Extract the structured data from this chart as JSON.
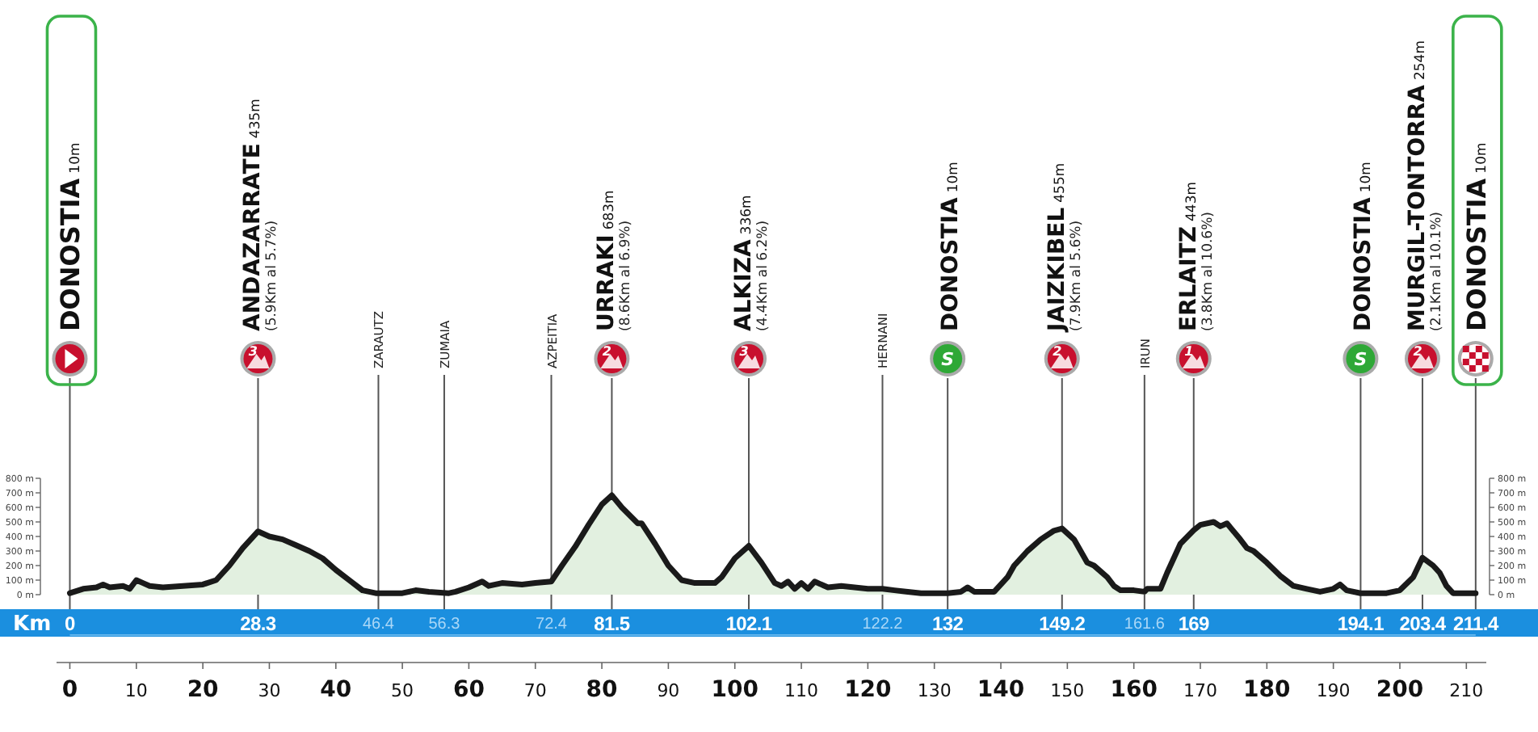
{
  "chart_data": {
    "type": "area",
    "x2label": "Km",
    "color": "#e2f0e0",
    "x": [
      0,
      2,
      4,
      5,
      6,
      8,
      9,
      10,
      11,
      12,
      14,
      17,
      20,
      22,
      24,
      26,
      28.3,
      30,
      32,
      34,
      36,
      38,
      40,
      42,
      44,
      46,
      50,
      52,
      54,
      57,
      58,
      60,
      62,
      63,
      65,
      68,
      70,
      72.4,
      74,
      76,
      78,
      80,
      81.5,
      83,
      85.4,
      86,
      88,
      90,
      92,
      94,
      97,
      98,
      100,
      102.1,
      104,
      106,
      107,
      108,
      109,
      110,
      111,
      112,
      114,
      116,
      118,
      120,
      122.2,
      124,
      126,
      128,
      132,
      134,
      135,
      136,
      139,
      141,
      142,
      144,
      146,
      148,
      149.2,
      151,
      152,
      153,
      154,
      156,
      157,
      158,
      160,
      161.6,
      162,
      164,
      165,
      167,
      169,
      170,
      172,
      173,
      174,
      176,
      177,
      178,
      180,
      182,
      184,
      186,
      188,
      190,
      191,
      192,
      194.1,
      198,
      200,
      202,
      203.4,
      205,
      206,
      207,
      208,
      211.4
    ],
    "values": [
      10,
      40,
      50,
      70,
      50,
      60,
      40,
      100,
      80,
      60,
      50,
      60,
      70,
      100,
      200,
      320,
      435,
      400,
      380,
      340,
      300,
      250,
      170,
      100,
      30,
      10,
      10,
      30,
      20,
      10,
      20,
      50,
      90,
      60,
      80,
      70,
      80,
      90,
      200,
      330,
      480,
      620,
      683,
      600,
      490,
      490,
      350,
      200,
      100,
      80,
      80,
      120,
      250,
      336,
      220,
      80,
      60,
      90,
      40,
      80,
      40,
      90,
      50,
      60,
      50,
      40,
      40,
      30,
      20,
      10,
      10,
      20,
      50,
      20,
      20,
      120,
      200,
      300,
      380,
      440,
      455,
      380,
      300,
      220,
      200,
      120,
      60,
      30,
      30,
      20,
      40,
      40,
      150,
      350,
      443,
      480,
      500,
      470,
      490,
      380,
      320,
      300,
      220,
      130,
      60,
      40,
      20,
      40,
      70,
      30,
      10,
      10,
      30,
      120,
      254,
      200,
      150,
      60,
      10,
      10
    ],
    "xlim": [
      -2,
      213
    ],
    "xticks": [
      0,
      10,
      20,
      30,
      40,
      50,
      60,
      70,
      80,
      90,
      100,
      110,
      120,
      130,
      140,
      150,
      160,
      170,
      180,
      190,
      200,
      210
    ],
    "x2lim": [
      0,
      211.4
    ],
    "x2ticks": [
      0,
      28.3,
      46.4,
      56.3,
      72.4,
      81.5,
      102.1,
      122.2,
      132,
      149.2,
      161.6,
      169,
      194.1,
      203.4,
      211.4
    ],
    "ylim": [
      0,
      800
    ],
    "yticks": [
      {
        "value": 0,
        "label": "0 m"
      },
      {
        "value": 100,
        "label": "100 m"
      },
      {
        "value": 200,
        "label": "200 m"
      },
      {
        "value": 300,
        "label": "300 m"
      },
      {
        "value": 400,
        "label": "400 m"
      },
      {
        "value": 500,
        "label": "500 m"
      },
      {
        "value": 600,
        "label": "600 m"
      },
      {
        "value": 700,
        "label": "700 m"
      },
      {
        "value": 800,
        "label": "800 m"
      }
    ],
    "y2lim": [
      0,
      800
    ],
    "y2ticks": [
      {
        "value": 0,
        "label": "0 m"
      },
      {
        "value": 100,
        "label": "100 m"
      },
      {
        "value": 200,
        "label": "200 m"
      },
      {
        "value": 300,
        "label": "300 m"
      },
      {
        "value": 400,
        "label": "400 m"
      },
      {
        "value": 500,
        "label": "500 m"
      },
      {
        "value": 600,
        "label": "600 m"
      },
      {
        "value": 700,
        "label": "700 m"
      },
      {
        "value": 800,
        "label": "800 m"
      }
    ],
    "ref_lines": [
      {
        "axis": "x",
        "value": 0,
        "label": "DONOSTIA 10m"
      },
      {
        "axis": "x",
        "value": 28.3,
        "label": "ANDAZARRATE 435m (5.9Km al 5.7%)"
      },
      {
        "axis": "x",
        "value": 46.4,
        "label": "ZARAUTZ"
      },
      {
        "axis": "x",
        "value": 56.3,
        "label": "ZUMAIA"
      },
      {
        "axis": "x",
        "value": 72.4,
        "label": "AZPEITIA"
      },
      {
        "axis": "x",
        "value": 81.5,
        "label": "URRAKI 683m (8.6Km al 6.9%)"
      },
      {
        "axis": "x",
        "value": 102.1,
        "label": "ALKIZA 336m (4.4Km al 6.2%)"
      },
      {
        "axis": "x",
        "value": 122.2,
        "label": "HERNANI"
      },
      {
        "axis": "x",
        "value": 132,
        "label": "DONOSTIA 10m"
      },
      {
        "axis": "x",
        "value": 149.2,
        "label": "JAIZKIBEL 455m (7.9Km al 5.6%)"
      },
      {
        "axis": "x",
        "value": 161.6,
        "label": "IRUN"
      },
      {
        "axis": "x",
        "value": 169,
        "label": "ERLAITZ 443m (3.8Km al 10.6%)"
      },
      {
        "axis": "x",
        "value": 194.1,
        "label": "DONOSTIA 10m"
      },
      {
        "axis": "x",
        "value": 203.4,
        "label": "MURGIL-TONTORRA 254m (2.1Km al 10.1%)"
      },
      {
        "axis": "x",
        "value": 211.4,
        "label": "DONOSTIA 10m"
      }
    ],
    "annotations": [
      "3",
      "2",
      "3",
      "S",
      "2",
      "1",
      "S",
      "2"
    ],
    "grid": false
  }
}
